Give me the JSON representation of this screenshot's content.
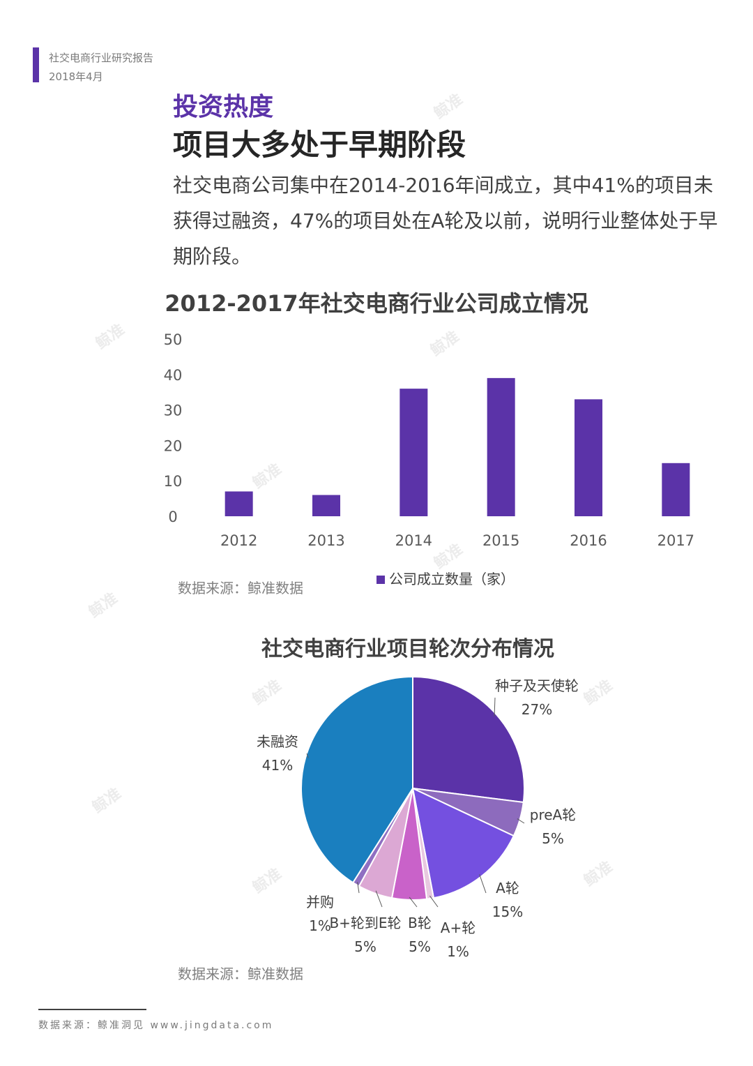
{
  "header": {
    "report_title": "社交电商行业研究报告",
    "date": "2018年4月"
  },
  "section_title": "投资热度",
  "headline": "项目大多处于早期阶段",
  "intro": "社交电商公司集中在2014-2016年间成立，其中41%的项目未获得过融资，47%的项目处在A轮及以前，说明行业整体处于早期阶段。",
  "watermark": "鲸准",
  "colors": {
    "accent": "#5b33a8"
  },
  "chart_data": [
    {
      "type": "bar",
      "title": "2012-2017年社交电商行业公司成立情况",
      "categories": [
        "2012",
        "2013",
        "2014",
        "2015",
        "2016",
        "2017"
      ],
      "series": [
        {
          "name": "公司成立数量（家）",
          "values": [
            7,
            6,
            36,
            39,
            33,
            15
          ],
          "color": "#5b33a8"
        }
      ],
      "yticks": [
        "0",
        "10",
        "20",
        "30",
        "40",
        "50"
      ],
      "ylim": [
        0,
        50
      ],
      "grid": false,
      "legend": "bottom",
      "source": "数据来源：鲸准数据"
    },
    {
      "type": "pie",
      "title": "社交电商行业项目轮次分布情况",
      "slices": [
        {
          "label": "种子及天使轮",
          "pct_text": "27%",
          "value": 27,
          "color": "#5b33a8"
        },
        {
          "label": "preA轮",
          "pct_text": "5%",
          "value": 5,
          "color": "#8d6bbd"
        },
        {
          "label": "A轮",
          "pct_text": "15%",
          "value": 15,
          "color": "#7450e0"
        },
        {
          "label": "A+轮",
          "pct_text": "1%",
          "value": 1,
          "color": "#e8c8e0"
        },
        {
          "label": "B轮",
          "pct_text": "5%",
          "value": 5,
          "color": "#c962c9"
        },
        {
          "label": "B+轮到E轮",
          "pct_text": "5%",
          "value": 5,
          "color": "#dca8d4"
        },
        {
          "label": "并购",
          "pct_text": "1%",
          "value": 1,
          "color": "#8f6fc2"
        },
        {
          "label": "未融资",
          "pct_text": "41%",
          "value": 41,
          "color": "#1a7fbf"
        }
      ],
      "source": "数据来源：鲸准数据"
    }
  ],
  "footer": "数据来源：鲸准洞见 www.jingdata.com"
}
